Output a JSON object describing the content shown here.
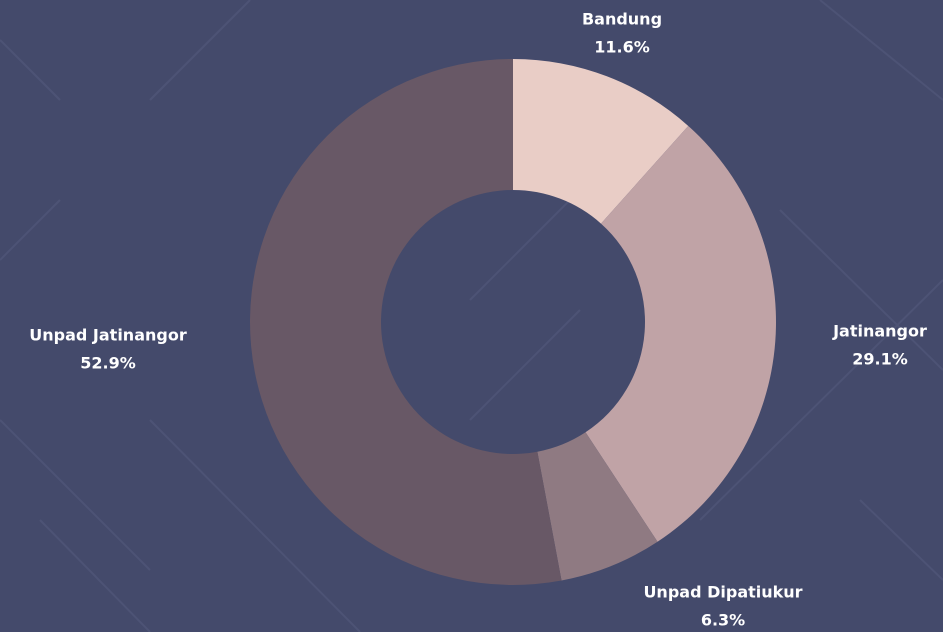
{
  "chart_data": {
    "type": "donut",
    "categories": [
      "Bandung",
      "Jatinangor",
      "Unpad Dipatiukur",
      "Unpad Jatinangor"
    ],
    "values": [
      11.6,
      29.1,
      6.3,
      52.9
    ],
    "value_labels": [
      "11.6%",
      "29.1%",
      "6.3%",
      "52.9%"
    ],
    "colors": [
      "#e9cdc6",
      "#c0a3a6",
      "#8f7a82",
      "#685866"
    ]
  }
}
